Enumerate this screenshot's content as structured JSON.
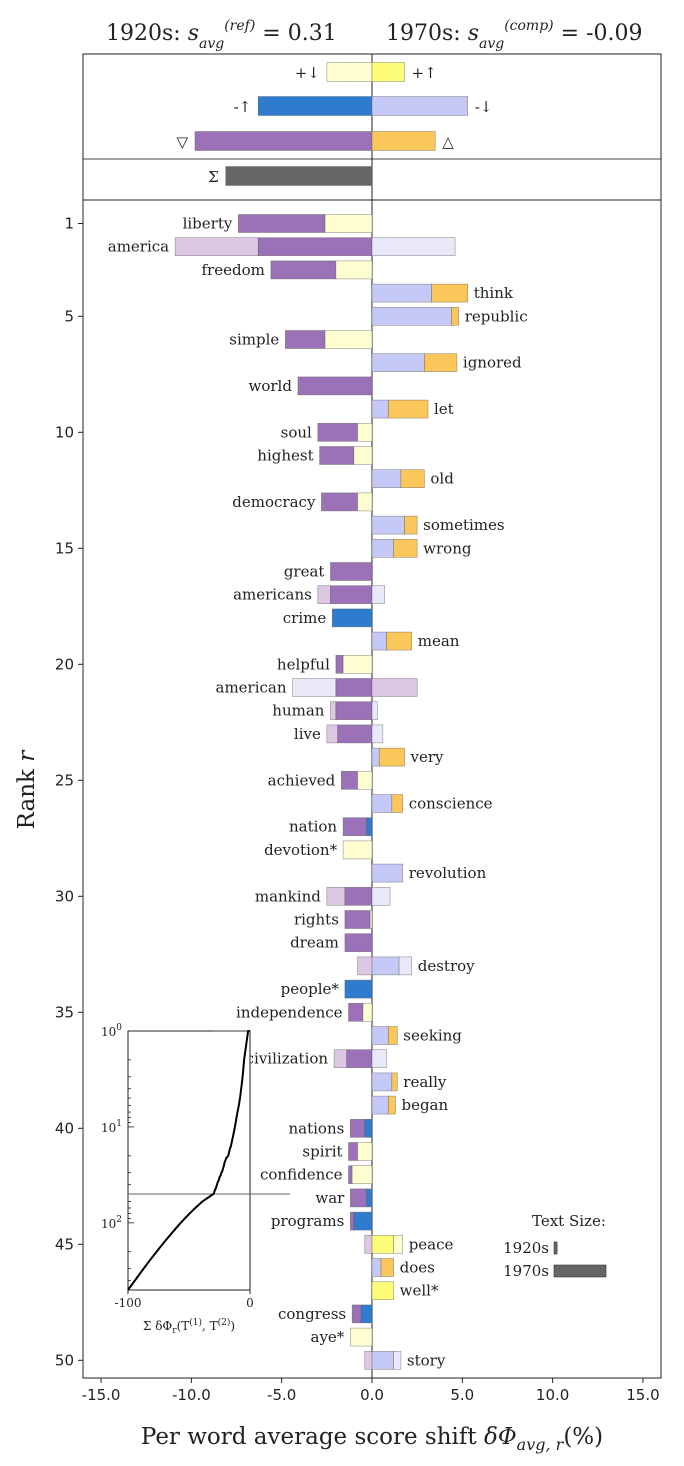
{
  "chart_data": {
    "type": "bar",
    "title_left": "1920s: s_avg^(ref) = 0.31",
    "title_right": "1970s: s_avg^(comp) = -0.09",
    "xlabel": "Per word average score shift δΦ_avg,r(%)",
    "ylabel": "Rank r",
    "xlim": [
      -16,
      16
    ],
    "xticks": [
      "-15.0",
      "-10.0",
      "-5.0",
      "0.0",
      "5.0",
      "10.0",
      "15.0"
    ],
    "yticks": [
      "1",
      "5",
      "10",
      "15",
      "20",
      "25",
      "30",
      "35",
      "40",
      "45",
      "50"
    ],
    "colors": {
      "purple": "#9b72b8",
      "purple_light": "#dcc8e3",
      "blue": "#2f7ccf",
      "periwinkle": "#c6c9f5",
      "periwinkle_light": "#e8e8f8",
      "yellow": "#fefd7a",
      "yellow_light": "#fefed0",
      "orange": "#fcc75a",
      "gray": "#666666"
    },
    "summary": [
      {
        "symbol": "+↓",
        "value": -2.5,
        "color": "yellow_light"
      },
      {
        "symbol": "+↑",
        "value": 1.8,
        "color": "yellow"
      },
      {
        "symbol": "-↑",
        "value": -6.3,
        "color": "blue"
      },
      {
        "symbol": "-↓",
        "value": 5.3,
        "color": "periwinkle"
      },
      {
        "symbol": "▽",
        "value": -9.8,
        "color": "purple"
      },
      {
        "symbol": "△",
        "value": 3.5,
        "color": "orange"
      }
    ],
    "total": {
      "symbol": "Σ",
      "value": -8.1
    },
    "words": [
      {
        "rank": 1,
        "word": "liberty",
        "side": "left",
        "segs": [
          [
            -7.4,
            -2.6,
            "purple"
          ],
          [
            -2.6,
            0,
            "yellow_light"
          ]
        ]
      },
      {
        "rank": 2,
        "word": "america",
        "side": "left",
        "segs": [
          [
            -10.9,
            -6.3,
            "purple_light"
          ],
          [
            -6.3,
            0,
            "purple"
          ],
          [
            0,
            4.6,
            "periwinkle_light"
          ]
        ]
      },
      {
        "rank": 3,
        "word": "freedom",
        "side": "left",
        "segs": [
          [
            -5.6,
            -2.0,
            "purple"
          ],
          [
            -2.0,
            0,
            "yellow_light"
          ]
        ]
      },
      {
        "rank": 4,
        "word": "think",
        "side": "right",
        "segs": [
          [
            0,
            3.3,
            "periwinkle"
          ],
          [
            3.3,
            5.3,
            "orange"
          ]
        ]
      },
      {
        "rank": 5,
        "word": "republic",
        "side": "right",
        "segs": [
          [
            0,
            4.4,
            "periwinkle"
          ],
          [
            4.4,
            4.8,
            "orange"
          ]
        ]
      },
      {
        "rank": 6,
        "word": "simple",
        "side": "left",
        "segs": [
          [
            -4.8,
            -2.6,
            "purple"
          ],
          [
            -2.6,
            0,
            "yellow_light"
          ]
        ]
      },
      {
        "rank": 7,
        "word": "ignored",
        "side": "right",
        "segs": [
          [
            0,
            2.9,
            "periwinkle"
          ],
          [
            2.9,
            4.7,
            "orange"
          ]
        ]
      },
      {
        "rank": 8,
        "word": "world",
        "side": "left",
        "segs": [
          [
            -4.1,
            0,
            "purple"
          ]
        ]
      },
      {
        "rank": 9,
        "word": "let",
        "side": "right",
        "segs": [
          [
            0,
            0.9,
            "periwinkle"
          ],
          [
            0.9,
            3.1,
            "orange"
          ]
        ]
      },
      {
        "rank": 10,
        "word": "soul",
        "side": "left",
        "segs": [
          [
            -3.0,
            -0.8,
            "purple"
          ],
          [
            -0.8,
            0,
            "yellow_light"
          ]
        ]
      },
      {
        "rank": 11,
        "word": "highest",
        "side": "left",
        "segs": [
          [
            -2.9,
            -1.0,
            "purple"
          ],
          [
            -1.0,
            0,
            "yellow_light"
          ]
        ]
      },
      {
        "rank": 12,
        "word": "old",
        "side": "right",
        "segs": [
          [
            0,
            1.6,
            "periwinkle"
          ],
          [
            1.6,
            2.9,
            "orange"
          ]
        ]
      },
      {
        "rank": 13,
        "word": "democracy",
        "side": "left",
        "segs": [
          [
            -2.8,
            -0.8,
            "purple"
          ],
          [
            -0.8,
            0,
            "yellow_light"
          ]
        ]
      },
      {
        "rank": 14,
        "word": "sometimes",
        "side": "right",
        "segs": [
          [
            0,
            1.8,
            "periwinkle"
          ],
          [
            1.8,
            2.5,
            "orange"
          ]
        ]
      },
      {
        "rank": 15,
        "word": "wrong",
        "side": "right",
        "segs": [
          [
            0,
            1.2,
            "periwinkle"
          ],
          [
            1.2,
            2.5,
            "orange"
          ]
        ]
      },
      {
        "rank": 16,
        "word": "great",
        "side": "left",
        "segs": [
          [
            -2.3,
            0,
            "purple"
          ]
        ]
      },
      {
        "rank": 17,
        "word": "americans",
        "side": "left",
        "segs": [
          [
            -3.0,
            -2.3,
            "purple_light"
          ],
          [
            -2.3,
            0,
            "purple"
          ],
          [
            0,
            0.7,
            "periwinkle_light"
          ]
        ]
      },
      {
        "rank": 18,
        "word": "crime",
        "side": "left",
        "segs": [
          [
            -2.2,
            0,
            "blue"
          ]
        ]
      },
      {
        "rank": 19,
        "word": "mean",
        "side": "right",
        "segs": [
          [
            0,
            0.8,
            "periwinkle"
          ],
          [
            0.8,
            2.2,
            "orange"
          ]
        ]
      },
      {
        "rank": 20,
        "word": "helpful",
        "side": "left",
        "segs": [
          [
            -2.0,
            -1.6,
            "purple"
          ],
          [
            -1.6,
            0,
            "yellow_light"
          ]
        ]
      },
      {
        "rank": 21,
        "word": "american",
        "side": "left",
        "segs": [
          [
            -4.4,
            -2.0,
            "periwinkle_light"
          ],
          [
            -2.0,
            0,
            "purple"
          ],
          [
            0,
            2.5,
            "purple_light"
          ]
        ]
      },
      {
        "rank": 22,
        "word": "human",
        "side": "left",
        "segs": [
          [
            -2.3,
            -2.0,
            "purple_light"
          ],
          [
            -2.0,
            0,
            "purple"
          ],
          [
            0,
            0.3,
            "periwinkle_light"
          ]
        ]
      },
      {
        "rank": 23,
        "word": "live",
        "side": "left",
        "segs": [
          [
            -2.5,
            -1.9,
            "purple_light"
          ],
          [
            -1.9,
            0,
            "purple"
          ],
          [
            0,
            0.6,
            "periwinkle_light"
          ]
        ]
      },
      {
        "rank": 24,
        "word": "very",
        "side": "right",
        "segs": [
          [
            0,
            0.4,
            "periwinkle"
          ],
          [
            0.4,
            1.8,
            "orange"
          ]
        ]
      },
      {
        "rank": 25,
        "word": "achieved",
        "side": "left",
        "segs": [
          [
            -1.7,
            -0.8,
            "purple"
          ],
          [
            -0.8,
            0,
            "yellow_light"
          ]
        ]
      },
      {
        "rank": 26,
        "word": "conscience",
        "side": "right",
        "segs": [
          [
            0,
            1.1,
            "periwinkle"
          ],
          [
            1.1,
            1.7,
            "orange"
          ]
        ]
      },
      {
        "rank": 27,
        "word": "nation",
        "side": "left",
        "segs": [
          [
            -1.6,
            -0.3,
            "purple"
          ],
          [
            -0.3,
            0,
            "blue"
          ]
        ]
      },
      {
        "rank": 28,
        "word": "devotion*",
        "side": "left",
        "segs": [
          [
            -1.6,
            0,
            "yellow_light"
          ]
        ]
      },
      {
        "rank": 29,
        "word": "revolution",
        "side": "right",
        "segs": [
          [
            0,
            1.7,
            "periwinkle"
          ]
        ]
      },
      {
        "rank": 30,
        "word": "mankind",
        "side": "left",
        "segs": [
          [
            -2.5,
            -1.5,
            "purple_light"
          ],
          [
            -1.5,
            0,
            "purple"
          ],
          [
            0,
            1.0,
            "periwinkle_light"
          ]
        ]
      },
      {
        "rank": 31,
        "word": "rights",
        "side": "left",
        "segs": [
          [
            -1.5,
            -0.1,
            "purple"
          ],
          [
            -0.1,
            0,
            "yellow_light"
          ]
        ]
      },
      {
        "rank": 32,
        "word": "dream",
        "side": "left",
        "segs": [
          [
            -1.5,
            0,
            "purple"
          ]
        ]
      },
      {
        "rank": 33,
        "word": "destroy",
        "side": "right",
        "segs": [
          [
            -0.8,
            0,
            "purple_light"
          ],
          [
            0,
            1.5,
            "periwinkle"
          ],
          [
            1.5,
            2.2,
            "periwinkle_light"
          ]
        ]
      },
      {
        "rank": 34,
        "word": "people*",
        "side": "left",
        "segs": [
          [
            -1.5,
            0,
            "blue"
          ]
        ]
      },
      {
        "rank": 35,
        "word": "independence",
        "side": "left",
        "segs": [
          [
            -1.3,
            -0.5,
            "purple"
          ],
          [
            -0.5,
            0,
            "yellow_light"
          ]
        ]
      },
      {
        "rank": 36,
        "word": "seeking",
        "side": "right",
        "segs": [
          [
            0,
            0.9,
            "periwinkle"
          ],
          [
            0.9,
            1.4,
            "orange"
          ]
        ]
      },
      {
        "rank": 37,
        "word": "civilization",
        "side": "left",
        "segs": [
          [
            -2.1,
            -1.4,
            "purple_light"
          ],
          [
            -1.4,
            0,
            "purple"
          ],
          [
            0,
            0.8,
            "periwinkle_light"
          ]
        ]
      },
      {
        "rank": 38,
        "word": "really",
        "side": "right",
        "segs": [
          [
            0,
            1.1,
            "periwinkle"
          ],
          [
            1.1,
            1.4,
            "orange"
          ]
        ]
      },
      {
        "rank": 39,
        "word": "began",
        "side": "right",
        "segs": [
          [
            0,
            0.9,
            "periwinkle"
          ],
          [
            0.9,
            1.3,
            "orange"
          ]
        ]
      },
      {
        "rank": 40,
        "word": "nations",
        "side": "left",
        "segs": [
          [
            -1.2,
            -0.4,
            "purple"
          ],
          [
            -0.4,
            0,
            "blue"
          ]
        ]
      },
      {
        "rank": 41,
        "word": "spirit",
        "side": "left",
        "segs": [
          [
            -1.3,
            -0.8,
            "purple"
          ],
          [
            -0.8,
            0,
            "yellow_light"
          ]
        ]
      },
      {
        "rank": 42,
        "word": "confidence",
        "side": "left",
        "segs": [
          [
            -1.3,
            -1.1,
            "purple"
          ],
          [
            -1.1,
            0,
            "yellow_light"
          ]
        ]
      },
      {
        "rank": 43,
        "word": "war",
        "side": "left",
        "segs": [
          [
            -1.2,
            -0.3,
            "purple"
          ],
          [
            -0.3,
            0,
            "blue"
          ]
        ]
      },
      {
        "rank": 44,
        "word": "programs",
        "side": "left",
        "segs": [
          [
            -1.2,
            -1.0,
            "purple"
          ],
          [
            -1.0,
            0,
            "blue"
          ]
        ]
      },
      {
        "rank": 45,
        "word": "peace",
        "side": "right",
        "segs": [
          [
            -0.4,
            0,
            "purple_light"
          ],
          [
            0,
            1.2,
            "yellow"
          ],
          [
            1.2,
            1.7,
            "yellow_light"
          ]
        ]
      },
      {
        "rank": 46,
        "word": "does",
        "side": "right",
        "segs": [
          [
            0,
            0.5,
            "periwinkle"
          ],
          [
            0.5,
            1.2,
            "orange"
          ]
        ]
      },
      {
        "rank": 47,
        "word": "well*",
        "side": "right",
        "segs": [
          [
            0,
            1.2,
            "yellow"
          ]
        ]
      },
      {
        "rank": 48,
        "word": "congress",
        "side": "left",
        "segs": [
          [
            -1.1,
            -0.6,
            "purple"
          ],
          [
            -0.6,
            0,
            "blue"
          ]
        ]
      },
      {
        "rank": 49,
        "word": "aye*",
        "side": "left",
        "segs": [
          [
            -1.2,
            0,
            "yellow_light"
          ]
        ]
      },
      {
        "rank": 50,
        "word": "story",
        "side": "right",
        "segs": [
          [
            -0.4,
            0,
            "purple_light"
          ],
          [
            0,
            1.2,
            "periwinkle"
          ],
          [
            1.2,
            1.6,
            "periwinkle_light"
          ]
        ]
      }
    ],
    "text_size": {
      "title": "Text Size:",
      "items": [
        {
          "label": "1920s",
          "value": 0.06
        },
        {
          "label": "1970s",
          "value": 1.0
        }
      ]
    },
    "inset": {
      "xlabel": "Σ^r δΦ_r(T^(1), T^(2))",
      "xticks": [
        "-100",
        "0"
      ],
      "yticks": [
        "10^0",
        "10^1",
        "10^2"
      ],
      "xlim": [
        -100,
        0
      ],
      "hline_rank": 50
    }
  }
}
